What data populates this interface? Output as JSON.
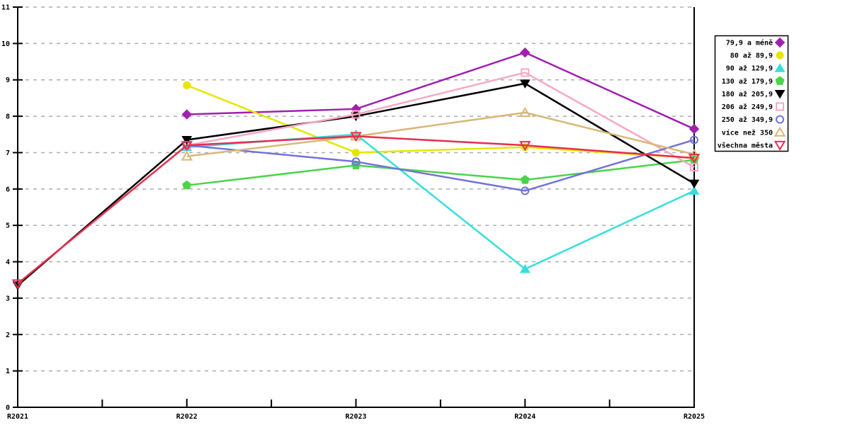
{
  "chart_data": {
    "type": "line",
    "title": "",
    "xlabel": "",
    "ylabel": "",
    "categories": [
      "R2021",
      "R2022",
      "R2023",
      "R2024",
      "R2025"
    ],
    "ylim": [
      0,
      11
    ],
    "yticks": [
      "0",
      "1",
      "2",
      "3",
      "4",
      "5",
      "6",
      "7",
      "8",
      "9",
      "10",
      "11"
    ],
    "grid": "horizontal-dashed",
    "legend_position": "right-outside",
    "series": [
      {
        "name": "79,9 a méně",
        "color": "#a020b0",
        "marker": "diamond",
        "fill": "solid",
        "values": [
          null,
          8.05,
          8.2,
          9.75,
          7.65
        ]
      },
      {
        "name": "80 až 89,9",
        "color": "#e6e600",
        "marker": "circle",
        "fill": "solid",
        "values": [
          null,
          8.85,
          7.0,
          7.15,
          6.85
        ]
      },
      {
        "name": "90 až 129,9",
        "color": "#35dfdc",
        "marker": "triangle-up",
        "fill": "solid",
        "values": [
          null,
          7.15,
          7.5,
          3.8,
          5.95
        ]
      },
      {
        "name": "130 až 179,9",
        "color": "#4ad44a",
        "marker": "pentagon",
        "fill": "solid",
        "values": [
          null,
          6.1,
          6.65,
          6.25,
          6.8
        ]
      },
      {
        "name": "180 až 205,9",
        "color": "#000000",
        "marker": "triangle-down",
        "fill": "solid",
        "values": [
          3.35,
          7.35,
          8.0,
          8.9,
          6.15
        ]
      },
      {
        "name": "206 až 249,9",
        "color": "#f8a8c0",
        "marker": "square",
        "fill": "open",
        "values": [
          null,
          7.2,
          8.05,
          9.2,
          6.6
        ]
      },
      {
        "name": "250 až 349,9",
        "color": "#7272dd",
        "marker": "circle",
        "fill": "open",
        "values": [
          null,
          7.2,
          6.75,
          5.95,
          7.35
        ]
      },
      {
        "name": "více než 350",
        "color": "#d8b878",
        "marker": "triangle-up",
        "fill": "open",
        "values": [
          null,
          6.9,
          7.45,
          8.1,
          6.95
        ]
      },
      {
        "name": "všechna města",
        "color": "#e62e50",
        "marker": "triangle-down",
        "fill": "open",
        "values": [
          3.4,
          7.2,
          7.45,
          7.2,
          6.85
        ]
      }
    ],
    "colors": {
      "axis": "#000000",
      "grid": "#adadad",
      "legend_border": "#000000",
      "background": "#ffffff"
    }
  }
}
